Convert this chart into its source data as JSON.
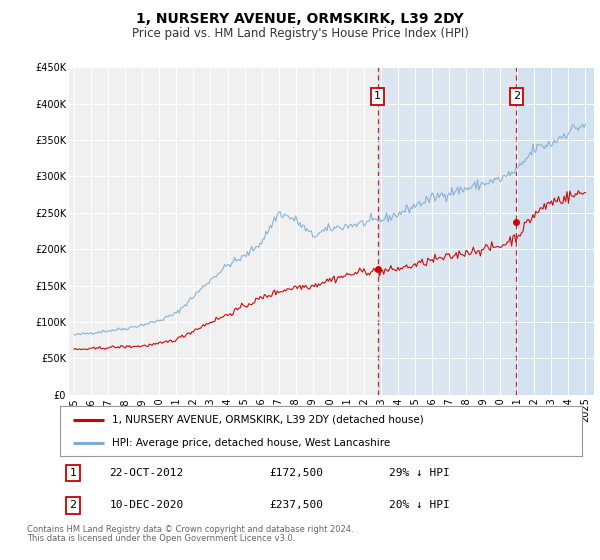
{
  "title": "1, NURSERY AVENUE, ORMSKIRK, L39 2DY",
  "subtitle": "Price paid vs. HM Land Registry's House Price Index (HPI)",
  "ylim": [
    0,
    450000
  ],
  "yticks": [
    0,
    50000,
    100000,
    150000,
    200000,
    250000,
    300000,
    350000,
    400000,
    450000
  ],
  "ytick_labels": [
    "£0",
    "£50K",
    "£100K",
    "£150K",
    "£200K",
    "£250K",
    "£300K",
    "£350K",
    "£400K",
    "£450K"
  ],
  "xlim_start": 1994.7,
  "xlim_end": 2025.5,
  "xticks": [
    1995,
    1996,
    1997,
    1998,
    1999,
    2000,
    2001,
    2002,
    2003,
    2004,
    2005,
    2006,
    2007,
    2008,
    2009,
    2010,
    2011,
    2012,
    2013,
    2014,
    2015,
    2016,
    2017,
    2018,
    2019,
    2020,
    2021,
    2022,
    2023,
    2024,
    2025
  ],
  "sale1_x": 2012.8,
  "sale1_y": 172500,
  "sale1_label": "1",
  "sale1_date": "22-OCT-2012",
  "sale1_price": "£172,500",
  "sale1_hpi": "29% ↓ HPI",
  "sale2_x": 2020.95,
  "sale2_y": 237500,
  "sale2_label": "2",
  "sale2_date": "10-DEC-2020",
  "sale2_price": "£237,500",
  "sale2_hpi": "20% ↓ HPI",
  "sale_color": "#cc0000",
  "hpi_color": "#7dadd4",
  "vline_color": "#cc0000",
  "highlight_color": "#ccdff0",
  "legend_label_property": "1, NURSERY AVENUE, ORMSKIRK, L39 2DY (detached house)",
  "legend_label_hpi": "HPI: Average price, detached house, West Lancashire",
  "footnote1": "Contains HM Land Registry data © Crown copyright and database right 2024.",
  "footnote2": "This data is licensed under the Open Government Licence v3.0.",
  "title_fontsize": 10,
  "subtitle_fontsize": 8.5,
  "tick_fontsize": 7,
  "annotation_fontsize": 8,
  "background_color": "#ffffff",
  "plot_bg_color": "#f0f0f0",
  "grid_color": "#ffffff",
  "hpi_key_points_x": [
    1995,
    1996,
    1997,
    1998,
    1999,
    2000,
    2001,
    2002,
    2003,
    2004,
    2005,
    2006,
    2007,
    2008,
    2009,
    2010,
    2011,
    2012,
    2013,
    2014,
    2015,
    2016,
    2017,
    2018,
    2019,
    2020,
    2021,
    2022,
    2023,
    2024,
    2025
  ],
  "hpi_key_points_y": [
    82000,
    85000,
    88000,
    91000,
    96000,
    102000,
    112000,
    135000,
    158000,
    178000,
    190000,
    210000,
    250000,
    240000,
    218000,
    228000,
    232000,
    236000,
    240000,
    248000,
    260000,
    270000,
    278000,
    283000,
    290000,
    296000,
    308000,
    338000,
    345000,
    362000,
    372000
  ],
  "prop_key_points_x": [
    1995,
    1996,
    1997,
    1998,
    1999,
    2000,
    2001,
    2002,
    2003,
    2004,
    2005,
    2006,
    2007,
    2008,
    2009,
    2010,
    2011,
    2012,
    2013,
    2014,
    2015,
    2016,
    2017,
    2018,
    2019,
    2020,
    2021,
    2022,
    2023,
    2024,
    2025
  ],
  "prop_key_points_y": [
    62000,
    63000,
    65000,
    66000,
    67000,
    70000,
    76000,
    88000,
    100000,
    110000,
    122000,
    133000,
    142000,
    148000,
    150000,
    158000,
    164000,
    170000,
    169000,
    173000,
    178000,
    185000,
    189000,
    196000,
    200000,
    204000,
    218000,
    248000,
    265000,
    272000,
    278000
  ]
}
